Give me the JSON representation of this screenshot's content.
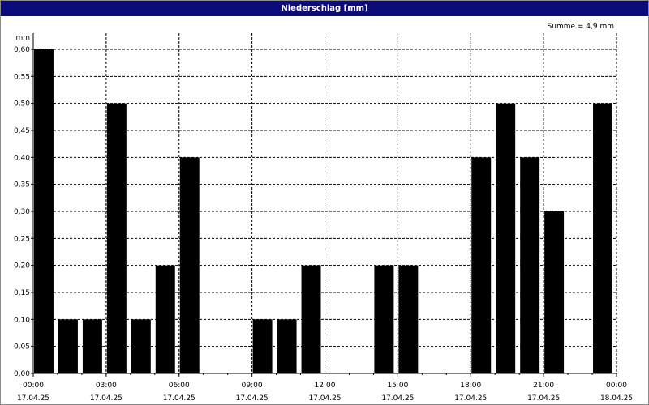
{
  "chart_data": {
    "type": "bar",
    "title": "Niederschlag [mm]",
    "ylabel": "mm",
    "summary": "Summe = 4,9 mm",
    "ylim": [
      0,
      0.6
    ],
    "y_ticks": [
      "0,00",
      "0,05",
      "0,10",
      "0,15",
      "0,20",
      "0,25",
      "0,30",
      "0,35",
      "0,40",
      "0,45",
      "0,50",
      "0,55",
      "0,60"
    ],
    "x_ticks": [
      {
        "time": "00:00",
        "date": "17.04.25"
      },
      {
        "time": "03:00",
        "date": "17.04.25"
      },
      {
        "time": "06:00",
        "date": "17.04.25"
      },
      {
        "time": "09:00",
        "date": "17.04.25"
      },
      {
        "time": "12:00",
        "date": "17.04.25"
      },
      {
        "time": "15:00",
        "date": "17.04.25"
      },
      {
        "time": "18:00",
        "date": "17.04.25"
      },
      {
        "time": "21:00",
        "date": "17.04.25"
      },
      {
        "time": "00:00",
        "date": "18.04.25"
      }
    ],
    "hours_per_x_tick": 3,
    "hourly_values": [
      0.6,
      0.1,
      0.1,
      0.5,
      0.1,
      0.2,
      0.4,
      0,
      0,
      0.1,
      0.1,
      0.2,
      0,
      0,
      0.2,
      0.2,
      0,
      0,
      0.4,
      0.5,
      0.4,
      0.3,
      0,
      0.5
    ],
    "grid": true,
    "colors": {
      "bar": "#000000",
      "titlebar": "#0b0b7a",
      "title_text": "#ffffff"
    }
  }
}
